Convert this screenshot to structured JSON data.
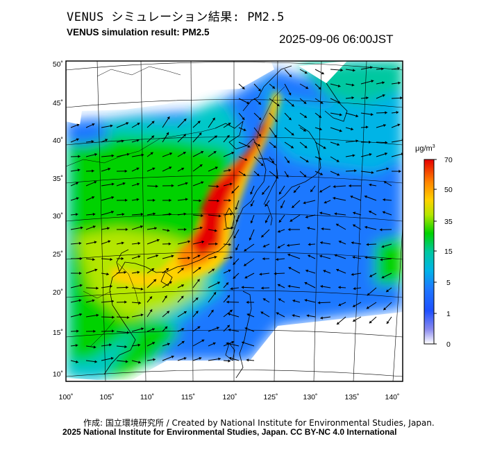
{
  "header": {
    "title_ja": "VENUS シミュレーション結果: PM2.5",
    "title_en": "VENUS simulation result: PM2.5",
    "timestamp": "2025-09-06 06:00JST"
  },
  "map": {
    "lat_labels": [
      "50˚",
      "45˚",
      "40˚",
      "35˚",
      "30˚",
      "25˚",
      "20˚",
      "15˚",
      "10˚"
    ],
    "lon_labels": [
      "100˚",
      "105˚",
      "110˚",
      "115˚",
      "120˚",
      "125˚",
      "130˚",
      "135˚",
      "140˚"
    ],
    "background_color": "#ffffff",
    "no_data_color": "#ffffff"
  },
  "colorbar": {
    "unit": "μg/m",
    "unit_sup": "3",
    "ticks": [
      "70",
      "50",
      "35",
      "15",
      "5",
      "1",
      "0"
    ],
    "colors": [
      "#ff0000",
      "#ff8c00",
      "#ffd700",
      "#00d700",
      "#00c8c8",
      "#1e64ff",
      "#ffffff"
    ]
  },
  "footer": {
    "credit": "作成: 国立環境研究所 / Created by National Institute for Environmental Studies, Japan.",
    "license": "2025 National Institute for Environmental Studies, Japan. CC BY-NC 4.0 International"
  }
}
